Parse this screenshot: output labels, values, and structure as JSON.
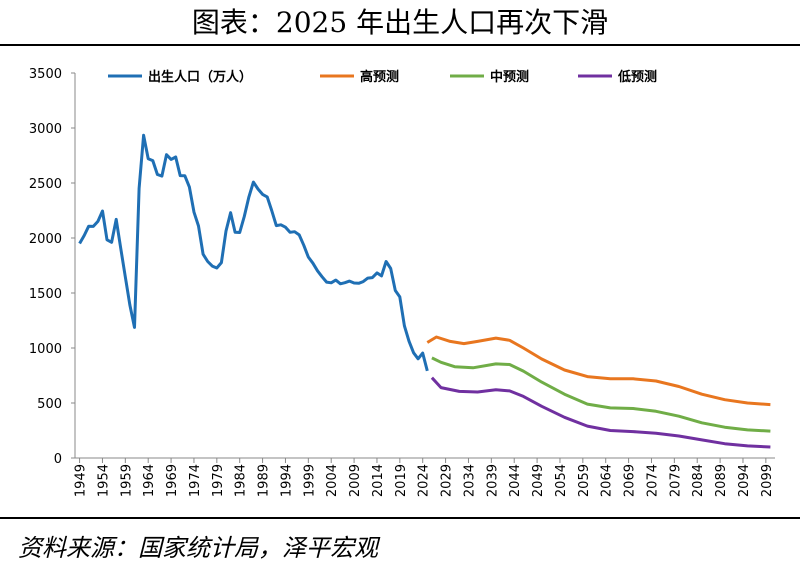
{
  "chart_data": {
    "type": "line",
    "title": "图表：2025 年出生人口再次下滑",
    "source": "资料来源：国家统计局，泽平宏观",
    "xlim": [
      1948,
      2101
    ],
    "xticks": [
      1949,
      1954,
      1959,
      1964,
      1969,
      1974,
      1979,
      1984,
      1989,
      1994,
      1999,
      2004,
      2009,
      2014,
      2019,
      2024,
      2029,
      2034,
      2039,
      2044,
      2049,
      2054,
      2059,
      2064,
      2069,
      2074,
      2079,
      2084,
      2089,
      2094,
      2099
    ],
    "ylim": [
      0,
      3500
    ],
    "yticks": [
      0,
      500,
      1000,
      1500,
      2000,
      2500,
      3000,
      3500
    ],
    "legend": "top",
    "series": [
      {
        "name": "出生人口（万人）",
        "color": "#1f6fb4",
        "x": [
          1949,
          1950,
          1951,
          1952,
          1953,
          1954,
          1955,
          1956,
          1957,
          1958,
          1959,
          1960,
          1961,
          1962,
          1963,
          1964,
          1965,
          1966,
          1967,
          1968,
          1969,
          1970,
          1971,
          1972,
          1973,
          1974,
          1975,
          1976,
          1977,
          1978,
          1979,
          1980,
          1981,
          1982,
          1983,
          1984,
          1985,
          1986,
          1987,
          1988,
          1989,
          1990,
          1991,
          1992,
          1993,
          1994,
          1995,
          1996,
          1997,
          1998,
          1999,
          2000,
          2001,
          2002,
          2003,
          2004,
          2005,
          2006,
          2007,
          2008,
          2009,
          2010,
          2011,
          2012,
          2013,
          2014,
          2015,
          2016,
          2017,
          2018,
          2019,
          2020,
          2021,
          2022,
          2023,
          2024,
          2025
        ],
        "values": [
          1950,
          2023,
          2107,
          2105,
          2151,
          2245,
          1984,
          1961,
          2169,
          1903,
          1647,
          1389,
          1187,
          2451,
          2934,
          2721,
          2704,
          2577,
          2563,
          2757,
          2715,
          2736,
          2567,
          2566,
          2463,
          2235,
          2109,
          1853,
          1786,
          1745,
          1727,
          1776,
          2064,
          2230,
          2052,
          2050,
          2196,
          2374,
          2508,
          2445,
          2396,
          2374,
          2250,
          2113,
          2120,
          2098,
          2052,
          2057,
          2028,
          1934,
          1827,
          1771,
          1702,
          1647,
          1599,
          1593,
          1617,
          1584,
          1594,
          1608,
          1591,
          1588,
          1604,
          1635,
          1640,
          1683,
          1655,
          1786,
          1723,
          1523,
          1465,
          1202,
          1062,
          956,
          902,
          954,
          792
        ]
      },
      {
        "name": "高预测",
        "color": "#e8761f",
        "x": [
          2025,
          2027,
          2030,
          2033,
          2036,
          2040,
          2043,
          2046,
          2050,
          2055,
          2060,
          2065,
          2070,
          2075,
          2080,
          2085,
          2090,
          2095,
          2100
        ],
        "values": [
          1050,
          1100,
          1060,
          1040,
          1060,
          1090,
          1070,
          1000,
          900,
          800,
          740,
          720,
          720,
          700,
          650,
          580,
          530,
          500,
          485
        ]
      },
      {
        "name": "中预测",
        "color": "#70ad47",
        "x": [
          2026,
          2028,
          2031,
          2035,
          2040,
          2043,
          2046,
          2050,
          2055,
          2060,
          2065,
          2070,
          2075,
          2080,
          2085,
          2090,
          2095,
          2100
        ],
        "values": [
          910,
          870,
          830,
          820,
          855,
          850,
          790,
          690,
          580,
          490,
          455,
          450,
          425,
          380,
          320,
          280,
          255,
          245
        ]
      },
      {
        "name": "低预测",
        "color": "#7030a0",
        "x": [
          2026,
          2028,
          2032,
          2036,
          2040,
          2043,
          2046,
          2050,
          2055,
          2060,
          2065,
          2070,
          2075,
          2080,
          2085,
          2090,
          2095,
          2100
        ],
        "values": [
          730,
          640,
          605,
          600,
          620,
          610,
          560,
          470,
          370,
          290,
          250,
          240,
          225,
          200,
          165,
          130,
          110,
          100
        ]
      }
    ]
  }
}
